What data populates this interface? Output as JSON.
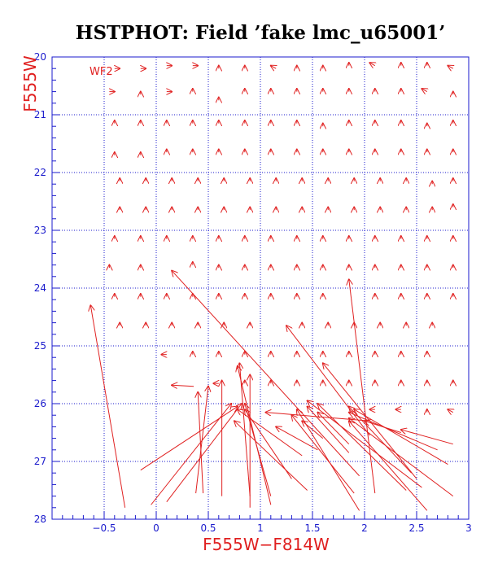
{
  "colors": {
    "axis": "#1a1acc",
    "grid": "#1a1acc",
    "vectors": "#e02020",
    "labels": "#e02020",
    "title": "#000000",
    "background": "#ffffff"
  },
  "chart_data": {
    "type": "scatter",
    "title": "HSTPHOT: Field ’fake lmc_u65001’",
    "xlabel": "F555W−F814W",
    "ylabel": "F555W",
    "panel_label": "WF2",
    "xlim": [
      -1.0,
      3.0
    ],
    "ylim": [
      28,
      20
    ],
    "y_inverted": true,
    "grid": true,
    "grid_style": "dotted",
    "xticks": [
      -0.5,
      0,
      0.5,
      1,
      1.5,
      2,
      2.5,
      3
    ],
    "xtick_labels": [
      "−0.5",
      "0",
      "0.5",
      "1",
      "1.5",
      "2",
      "2.5",
      "3"
    ],
    "yticks": [
      20,
      21,
      22,
      23,
      24,
      25,
      26,
      27,
      28
    ],
    "ytick_labels": [
      "20",
      "21",
      "22",
      "23",
      "24",
      "25",
      "26",
      "27",
      "28"
    ],
    "series": [
      {
        "description_type": "vectors",
        "vectors": [
          [
            -0.4,
            20.2,
            -0.35,
            20.2
          ],
          [
            -0.15,
            20.2,
            -0.1,
            20.2
          ],
          [
            0.1,
            20.15,
            0.15,
            20.15
          ],
          [
            0.35,
            20.15,
            0.4,
            20.15
          ],
          [
            0.6,
            20.2,
            0.6,
            20.15
          ],
          [
            0.85,
            20.2,
            0.85,
            20.15
          ],
          [
            1.15,
            20.2,
            1.1,
            20.15
          ],
          [
            1.35,
            20.2,
            1.35,
            20.15
          ],
          [
            1.6,
            20.2,
            1.6,
            20.15
          ],
          [
            1.85,
            20.15,
            1.85,
            20.1
          ],
          [
            2.1,
            20.15,
            2.05,
            20.1
          ],
          [
            2.35,
            20.15,
            2.35,
            20.1
          ],
          [
            2.6,
            20.15,
            2.6,
            20.1
          ],
          [
            2.85,
            20.2,
            2.8,
            20.15
          ],
          [
            -0.45,
            20.6,
            -0.4,
            20.6
          ],
          [
            -0.15,
            20.65,
            -0.15,
            20.6
          ],
          [
            0.1,
            20.6,
            0.15,
            20.6
          ],
          [
            0.35,
            20.6,
            0.35,
            20.55
          ],
          [
            0.6,
            20.75,
            0.6,
            20.7
          ],
          [
            0.85,
            20.6,
            0.85,
            20.55
          ],
          [
            1.1,
            20.6,
            1.1,
            20.55
          ],
          [
            1.35,
            20.6,
            1.35,
            20.55
          ],
          [
            1.6,
            20.6,
            1.6,
            20.55
          ],
          [
            1.85,
            20.6,
            1.85,
            20.55
          ],
          [
            2.1,
            20.6,
            2.1,
            20.55
          ],
          [
            2.35,
            20.6,
            2.35,
            20.55
          ],
          [
            2.6,
            20.6,
            2.55,
            20.55
          ],
          [
            2.85,
            20.65,
            2.85,
            20.6
          ],
          [
            -0.4,
            21.15,
            -0.4,
            21.1
          ],
          [
            -0.15,
            21.15,
            -0.15,
            21.1
          ],
          [
            0.1,
            21.15,
            0.1,
            21.1
          ],
          [
            0.35,
            21.15,
            0.35,
            21.1
          ],
          [
            0.6,
            21.15,
            0.6,
            21.1
          ],
          [
            0.85,
            21.15,
            0.85,
            21.1
          ],
          [
            1.1,
            21.15,
            1.1,
            21.1
          ],
          [
            1.35,
            21.15,
            1.35,
            21.1
          ],
          [
            1.6,
            21.2,
            1.6,
            21.15
          ],
          [
            1.85,
            21.15,
            1.85,
            21.1
          ],
          [
            2.1,
            21.15,
            2.1,
            21.1
          ],
          [
            2.35,
            21.15,
            2.35,
            21.1
          ],
          [
            2.6,
            21.2,
            2.6,
            21.15
          ],
          [
            2.85,
            21.15,
            2.85,
            21.1
          ],
          [
            -0.4,
            21.7,
            -0.4,
            21.65
          ],
          [
            -0.15,
            21.7,
            -0.15,
            21.65
          ],
          [
            0.1,
            21.65,
            0.1,
            21.6
          ],
          [
            0.35,
            21.65,
            0.35,
            21.6
          ],
          [
            0.6,
            21.65,
            0.6,
            21.6
          ],
          [
            0.85,
            21.65,
            0.85,
            21.6
          ],
          [
            1.1,
            21.65,
            1.1,
            21.6
          ],
          [
            1.35,
            21.65,
            1.35,
            21.6
          ],
          [
            1.6,
            21.65,
            1.6,
            21.6
          ],
          [
            1.85,
            21.65,
            1.85,
            21.6
          ],
          [
            2.1,
            21.65,
            2.1,
            21.6
          ],
          [
            2.35,
            21.65,
            2.35,
            21.6
          ],
          [
            2.6,
            21.65,
            2.6,
            21.6
          ],
          [
            2.85,
            21.65,
            2.85,
            21.6
          ],
          [
            -0.35,
            22.15,
            -0.35,
            22.1
          ],
          [
            -0.1,
            22.15,
            -0.1,
            22.1
          ],
          [
            0.15,
            22.15,
            0.15,
            22.1
          ],
          [
            0.4,
            22.15,
            0.4,
            22.1
          ],
          [
            0.65,
            22.15,
            0.65,
            22.1
          ],
          [
            0.9,
            22.15,
            0.9,
            22.1
          ],
          [
            1.15,
            22.15,
            1.15,
            22.1
          ],
          [
            1.4,
            22.15,
            1.4,
            22.1
          ],
          [
            1.65,
            22.15,
            1.65,
            22.1
          ],
          [
            1.9,
            22.15,
            1.9,
            22.1
          ],
          [
            2.15,
            22.15,
            2.15,
            22.1
          ],
          [
            2.4,
            22.15,
            2.4,
            22.1
          ],
          [
            2.65,
            22.2,
            2.65,
            22.15
          ],
          [
            2.85,
            22.15,
            2.85,
            22.1
          ],
          [
            -0.35,
            22.65,
            -0.35,
            22.6
          ],
          [
            -0.1,
            22.65,
            -0.1,
            22.6
          ],
          [
            0.15,
            22.65,
            0.15,
            22.6
          ],
          [
            0.4,
            22.65,
            0.4,
            22.6
          ],
          [
            0.65,
            22.65,
            0.65,
            22.6
          ],
          [
            0.9,
            22.65,
            0.9,
            22.6
          ],
          [
            1.15,
            22.65,
            1.15,
            22.6
          ],
          [
            1.4,
            22.65,
            1.4,
            22.6
          ],
          [
            1.65,
            22.65,
            1.65,
            22.6
          ],
          [
            1.9,
            22.65,
            1.9,
            22.6
          ],
          [
            2.15,
            22.65,
            2.15,
            22.6
          ],
          [
            2.4,
            22.65,
            2.4,
            22.6
          ],
          [
            2.65,
            22.65,
            2.65,
            22.6
          ],
          [
            2.85,
            22.6,
            2.85,
            22.55
          ],
          [
            -0.4,
            23.15,
            -0.4,
            23.1
          ],
          [
            -0.15,
            23.15,
            -0.15,
            23.1
          ],
          [
            0.1,
            23.15,
            0.1,
            23.1
          ],
          [
            0.35,
            23.15,
            0.35,
            23.1
          ],
          [
            0.6,
            23.15,
            0.6,
            23.1
          ],
          [
            0.85,
            23.15,
            0.85,
            23.1
          ],
          [
            1.1,
            23.15,
            1.1,
            23.1
          ],
          [
            1.35,
            23.15,
            1.35,
            23.1
          ],
          [
            1.6,
            23.15,
            1.6,
            23.1
          ],
          [
            1.85,
            23.15,
            1.85,
            23.1
          ],
          [
            2.1,
            23.15,
            2.1,
            23.1
          ],
          [
            2.35,
            23.15,
            2.35,
            23.1
          ],
          [
            2.6,
            23.15,
            2.6,
            23.1
          ],
          [
            2.85,
            23.15,
            2.85,
            23.1
          ],
          [
            -0.45,
            23.65,
            -0.45,
            23.6
          ],
          [
            -0.15,
            23.65,
            -0.15,
            23.6
          ],
          [
            0.35,
            23.6,
            0.35,
            23.55
          ],
          [
            0.6,
            23.65,
            0.6,
            23.6
          ],
          [
            0.85,
            23.65,
            0.85,
            23.6
          ],
          [
            1.1,
            23.65,
            1.1,
            23.6
          ],
          [
            1.35,
            23.65,
            1.35,
            23.6
          ],
          [
            1.6,
            23.65,
            1.6,
            23.6
          ],
          [
            1.85,
            23.65,
            1.85,
            23.6
          ],
          [
            2.1,
            23.65,
            2.1,
            23.6
          ],
          [
            2.35,
            23.65,
            2.35,
            23.6
          ],
          [
            2.6,
            23.65,
            2.6,
            23.6
          ],
          [
            2.85,
            23.65,
            2.85,
            23.6
          ],
          [
            -0.4,
            24.15,
            -0.4,
            24.1
          ],
          [
            -0.15,
            24.15,
            -0.15,
            24.1
          ],
          [
            0.1,
            24.15,
            0.1,
            24.1
          ],
          [
            0.35,
            24.15,
            0.35,
            24.1
          ],
          [
            0.6,
            24.15,
            0.6,
            24.1
          ],
          [
            0.85,
            24.15,
            0.85,
            24.1
          ],
          [
            1.1,
            24.15,
            1.1,
            24.1
          ],
          [
            1.35,
            24.15,
            1.35,
            24.1
          ],
          [
            1.6,
            24.15,
            1.6,
            24.1
          ],
          [
            2.1,
            24.15,
            2.1,
            24.1
          ],
          [
            2.35,
            24.15,
            2.35,
            24.1
          ],
          [
            2.6,
            24.15,
            2.6,
            24.1
          ],
          [
            2.85,
            24.15,
            2.85,
            24.1
          ],
          [
            -0.35,
            24.65,
            -0.35,
            24.6
          ],
          [
            -0.1,
            24.65,
            -0.1,
            24.6
          ],
          [
            0.15,
            24.65,
            0.15,
            24.6
          ],
          [
            0.4,
            24.65,
            0.4,
            24.6
          ],
          [
            0.65,
            24.65,
            0.65,
            24.6
          ],
          [
            0.9,
            24.65,
            0.9,
            24.6
          ],
          [
            1.4,
            24.65,
            1.4,
            24.6
          ],
          [
            1.65,
            24.65,
            1.65,
            24.6
          ],
          [
            1.9,
            24.65,
            1.9,
            24.6
          ],
          [
            2.15,
            24.65,
            2.15,
            24.6
          ],
          [
            2.4,
            24.65,
            2.4,
            24.6
          ],
          [
            2.65,
            24.65,
            2.65,
            24.6
          ],
          [
            0.1,
            25.15,
            0.05,
            25.15
          ],
          [
            0.35,
            25.15,
            0.35,
            25.1
          ],
          [
            0.6,
            25.15,
            0.6,
            25.1
          ],
          [
            0.85,
            25.15,
            0.85,
            25.1
          ],
          [
            1.1,
            25.15,
            1.1,
            25.1
          ],
          [
            1.35,
            25.15,
            1.35,
            25.1
          ],
          [
            1.6,
            25.15,
            1.6,
            25.1
          ],
          [
            1.85,
            25.15,
            1.85,
            25.1
          ],
          [
            2.1,
            25.15,
            2.1,
            25.1
          ],
          [
            2.35,
            25.15,
            2.35,
            25.1
          ],
          [
            2.6,
            25.15,
            2.6,
            25.1
          ],
          [
            0.6,
            25.65,
            0.55,
            25.65
          ],
          [
            0.85,
            25.65,
            0.85,
            25.6
          ],
          [
            1.1,
            25.65,
            1.1,
            25.6
          ],
          [
            1.35,
            25.65,
            1.35,
            25.6
          ],
          [
            1.6,
            25.65,
            1.6,
            25.6
          ],
          [
            1.85,
            25.65,
            1.85,
            25.6
          ],
          [
            2.1,
            25.65,
            2.1,
            25.6
          ],
          [
            2.35,
            25.65,
            2.35,
            25.6
          ],
          [
            2.6,
            25.65,
            2.6,
            25.6
          ],
          [
            2.85,
            25.65,
            2.85,
            25.6
          ],
          [
            2.1,
            26.1,
            2.05,
            26.1
          ],
          [
            2.35,
            26.1,
            2.3,
            26.1
          ],
          [
            2.6,
            26.15,
            2.6,
            26.1
          ],
          [
            2.85,
            26.15,
            2.8,
            26.1
          ],
          [
            -0.3,
            27.8,
            -0.63,
            24.3
          ],
          [
            0.36,
            25.7,
            0.15,
            25.68
          ],
          [
            -0.15,
            27.15,
            0.78,
            26.05
          ],
          [
            0.38,
            27.55,
            0.5,
            25.7
          ],
          [
            0.45,
            27.55,
            0.4,
            25.8
          ],
          [
            -0.05,
            27.75,
            0.72,
            26.0
          ],
          [
            0.1,
            27.7,
            0.82,
            26.0
          ],
          [
            0.63,
            27.6,
            0.63,
            25.6
          ],
          [
            0.9,
            27.8,
            0.9,
            25.5
          ],
          [
            0.9,
            27.6,
            0.8,
            25.3
          ],
          [
            1.1,
            27.75,
            0.78,
            25.35
          ],
          [
            1.1,
            27.6,
            0.85,
            26.0
          ],
          [
            1.45,
            27.5,
            0.75,
            26.3
          ],
          [
            1.3,
            27.3,
            0.85,
            26.1
          ],
          [
            1.4,
            26.9,
            0.78,
            26.1
          ],
          [
            1.55,
            26.8,
            1.15,
            26.4
          ],
          [
            1.6,
            26.6,
            1.4,
            26.3
          ],
          [
            1.85,
            26.85,
            1.45,
            26.05
          ],
          [
            1.85,
            26.7,
            1.55,
            26.15
          ],
          [
            1.95,
            27.85,
            1.35,
            26.1
          ],
          [
            1.9,
            27.55,
            1.3,
            26.2
          ],
          [
            2.1,
            27.55,
            1.85,
            23.85
          ],
          [
            2.05,
            26.3,
            1.05,
            26.15
          ],
          [
            2.4,
            27.5,
            1.55,
            26.0
          ],
          [
            2.45,
            27.2,
            1.85,
            26.05
          ],
          [
            2.5,
            27.3,
            1.6,
            25.3
          ],
          [
            2.55,
            27.45,
            1.45,
            25.95
          ],
          [
            2.6,
            27.85,
            1.85,
            26.3
          ],
          [
            2.85,
            27.6,
            1.85,
            26.25
          ],
          [
            2.8,
            27.05,
            1.9,
            26.1
          ],
          [
            2.7,
            26.8,
            1.85,
            26.15
          ],
          [
            2.85,
            26.7,
            2.35,
            26.45
          ],
          [
            2.35,
            26.5,
            2.0,
            26.3
          ],
          [
            1.95,
            27.25,
            0.15,
            23.7
          ],
          [
            2.05,
            26.55,
            1.25,
            24.65
          ]
        ]
      }
    ]
  }
}
